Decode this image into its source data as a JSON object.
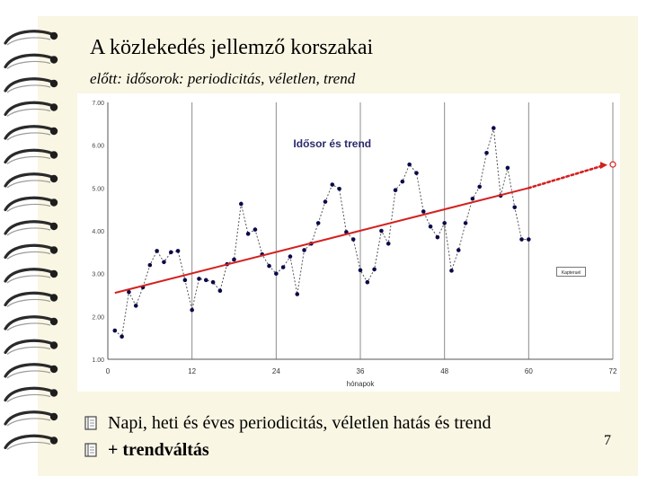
{
  "slide": {
    "title": "A közlekedés jellemző korszakai",
    "subtitle": "előtt: idősorok: periodicitás, véletlen, trend",
    "bullets": [
      "Napi, heti és éves periodicitás, véletlen hatás és trend",
      "+ trendváltás"
    ],
    "page_number": "7",
    "bullet_icon": "notebook-icon"
  },
  "chart_data": {
    "type": "scatter",
    "title": "Idősor és trend",
    "xlabel": "hónapok",
    "ylabel": "",
    "xlim": [
      0,
      72
    ],
    "ylim": [
      1.0,
      7.0
    ],
    "x_ticks": [
      "0",
      "12",
      "24",
      "36",
      "48",
      "60",
      "72"
    ],
    "y_ticks": [
      "1.00",
      "2.00",
      "3.00",
      "4.00",
      "5.00",
      "6.00",
      "7.00"
    ],
    "grid": "vertical",
    "legend": "Kapteruel",
    "series": [
      {
        "type": "line+markers",
        "color": "#0a0a4a",
        "x": [
          1,
          2,
          3,
          4,
          5,
          6,
          7,
          8,
          9,
          10,
          11,
          12,
          13,
          14,
          15,
          16,
          17,
          18,
          19,
          20,
          21,
          22,
          23,
          24,
          25,
          26,
          27,
          28,
          29,
          30,
          31,
          32,
          33,
          34,
          35,
          36,
          37,
          38,
          39,
          40,
          41,
          42,
          43,
          44,
          45,
          46,
          47,
          48,
          49,
          50,
          51,
          52,
          53,
          54,
          55,
          56,
          57,
          58,
          59,
          60
        ],
        "y": [
          1.67,
          1.53,
          2.57,
          2.25,
          2.68,
          3.2,
          3.53,
          3.27,
          3.5,
          3.53,
          2.85,
          2.15,
          2.88,
          2.85,
          2.8,
          2.6,
          3.22,
          3.33,
          4.63,
          3.93,
          4.03,
          3.45,
          3.18,
          3.0,
          3.15,
          3.4,
          2.52,
          3.55,
          3.7,
          4.18,
          4.68,
          5.08,
          4.98,
          3.97,
          3.8,
          3.08,
          2.8,
          3.1,
          4.0,
          3.7,
          4.95,
          5.15,
          5.55,
          5.35,
          4.45,
          4.1,
          3.85,
          4.18,
          3.07,
          3.55,
          4.18,
          4.75,
          5.03,
          5.82,
          6.4,
          4.82,
          5.47,
          4.55,
          3.8,
          3.8
        ]
      },
      {
        "type": "trend",
        "color": "#d42020",
        "x": [
          1,
          60
        ],
        "y": [
          2.55,
          5.0
        ]
      },
      {
        "type": "trend-projection",
        "color": "#d42020",
        "x": [
          60,
          72
        ],
        "y": [
          5.0,
          5.55
        ]
      }
    ]
  }
}
